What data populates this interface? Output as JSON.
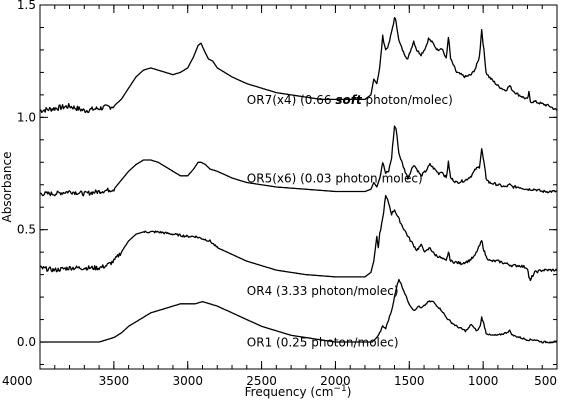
{
  "chart_data": {
    "type": "line",
    "xlabel": "Frequency (cm",
    "xlabel_sup": "−1",
    "xlabel_end": ")",
    "ylabel": "Absorbance",
    "xlim": [
      4000,
      500
    ],
    "ylim": [
      -0.12,
      1.5
    ],
    "grid": false,
    "x_ticks": [
      "4000",
      "3500",
      "3000",
      "2500",
      "2000",
      "1500",
      "1000",
      "500"
    ],
    "y_ticks": [
      "0.0",
      "0.5",
      "1.0",
      "1.5"
    ],
    "series": [
      {
        "label_parts": [
          "OR7(x4) (0.66 ",
          "soft",
          " photon/molec)"
        ],
        "label_pos": [
          2600,
          1.06
        ],
        "noise": [
          [
            4000,
            3500,
            0.012
          ],
          [
            1700,
            500,
            0.006
          ]
        ],
        "points": [
          [
            4000,
            1.03
          ],
          [
            3900,
            1.04
          ],
          [
            3800,
            1.05
          ],
          [
            3700,
            1.03
          ],
          [
            3600,
            1.04
          ],
          [
            3500,
            1.05
          ],
          [
            3450,
            1.08
          ],
          [
            3400,
            1.13
          ],
          [
            3350,
            1.18
          ],
          [
            3300,
            1.21
          ],
          [
            3250,
            1.22
          ],
          [
            3200,
            1.21
          ],
          [
            3150,
            1.2
          ],
          [
            3100,
            1.19
          ],
          [
            3050,
            1.2
          ],
          [
            3000,
            1.22
          ],
          [
            2960,
            1.27
          ],
          [
            2930,
            1.32
          ],
          [
            2910,
            1.33
          ],
          [
            2890,
            1.3
          ],
          [
            2860,
            1.26
          ],
          [
            2830,
            1.25
          ],
          [
            2800,
            1.22
          ],
          [
            2700,
            1.18
          ],
          [
            2600,
            1.15
          ],
          [
            2500,
            1.13
          ],
          [
            2400,
            1.11
          ],
          [
            2300,
            1.1
          ],
          [
            2200,
            1.09
          ],
          [
            2100,
            1.08
          ],
          [
            2000,
            1.08
          ],
          [
            1900,
            1.08
          ],
          [
            1800,
            1.08
          ],
          [
            1760,
            1.1
          ],
          [
            1740,
            1.17
          ],
          [
            1720,
            1.15
          ],
          [
            1700,
            1.22
          ],
          [
            1680,
            1.36
          ],
          [
            1660,
            1.3
          ],
          [
            1640,
            1.32
          ],
          [
            1620,
            1.38
          ],
          [
            1600,
            1.44
          ],
          [
            1590,
            1.43
          ],
          [
            1570,
            1.34
          ],
          [
            1540,
            1.29
          ],
          [
            1510,
            1.26
          ],
          [
            1470,
            1.34
          ],
          [
            1450,
            1.3
          ],
          [
            1420,
            1.28
          ],
          [
            1390,
            1.31
          ],
          [
            1370,
            1.35
          ],
          [
            1340,
            1.33
          ],
          [
            1310,
            1.3
          ],
          [
            1280,
            1.31
          ],
          [
            1250,
            1.26
          ],
          [
            1235,
            1.36
          ],
          [
            1220,
            1.26
          ],
          [
            1180,
            1.2
          ],
          [
            1120,
            1.18
          ],
          [
            1080,
            1.19
          ],
          [
            1050,
            1.22
          ],
          [
            1025,
            1.27
          ],
          [
            1010,
            1.39
          ],
          [
            995,
            1.3
          ],
          [
            980,
            1.2
          ],
          [
            960,
            1.18
          ],
          [
            900,
            1.14
          ],
          [
            850,
            1.12
          ],
          [
            820,
            1.14
          ],
          [
            800,
            1.12
          ],
          [
            760,
            1.1
          ],
          [
            700,
            1.08
          ],
          [
            690,
            1.11
          ],
          [
            680,
            1.07
          ],
          [
            650,
            1.07
          ],
          [
            600,
            1.06
          ],
          [
            550,
            1.05
          ],
          [
            500,
            1.03
          ]
        ]
      },
      {
        "label_parts": [
          "OR5(x6) (0.03 photon/molec)"
        ],
        "label_pos": [
          2600,
          0.71
        ],
        "noise": [
          [
            4000,
            3500,
            0.01
          ],
          [
            1700,
            500,
            0.006
          ]
        ],
        "points": [
          [
            4000,
            0.66
          ],
          [
            3900,
            0.66
          ],
          [
            3800,
            0.67
          ],
          [
            3700,
            0.66
          ],
          [
            3600,
            0.67
          ],
          [
            3500,
            0.68
          ],
          [
            3450,
            0.72
          ],
          [
            3400,
            0.76
          ],
          [
            3350,
            0.79
          ],
          [
            3300,
            0.81
          ],
          [
            3250,
            0.81
          ],
          [
            3200,
            0.8
          ],
          [
            3100,
            0.76
          ],
          [
            3050,
            0.74
          ],
          [
            3000,
            0.74
          ],
          [
            2960,
            0.77
          ],
          [
            2930,
            0.8
          ],
          [
            2910,
            0.8
          ],
          [
            2880,
            0.79
          ],
          [
            2850,
            0.77
          ],
          [
            2800,
            0.76
          ],
          [
            2700,
            0.73
          ],
          [
            2600,
            0.71
          ],
          [
            2500,
            0.7
          ],
          [
            2400,
            0.69
          ],
          [
            2200,
            0.68
          ],
          [
            2000,
            0.67
          ],
          [
            1800,
            0.67
          ],
          [
            1760,
            0.68
          ],
          [
            1740,
            0.71
          ],
          [
            1720,
            0.69
          ],
          [
            1700,
            0.73
          ],
          [
            1680,
            0.8
          ],
          [
            1660,
            0.75
          ],
          [
            1640,
            0.76
          ],
          [
            1620,
            0.82
          ],
          [
            1600,
            0.96
          ],
          [
            1590,
            0.95
          ],
          [
            1570,
            0.84
          ],
          [
            1540,
            0.78
          ],
          [
            1510,
            0.73
          ],
          [
            1470,
            0.79
          ],
          [
            1450,
            0.77
          ],
          [
            1420,
            0.74
          ],
          [
            1390,
            0.76
          ],
          [
            1360,
            0.79
          ],
          [
            1330,
            0.77
          ],
          [
            1300,
            0.75
          ],
          [
            1280,
            0.76
          ],
          [
            1250,
            0.73
          ],
          [
            1235,
            0.8
          ],
          [
            1220,
            0.73
          ],
          [
            1180,
            0.71
          ],
          [
            1120,
            0.72
          ],
          [
            1080,
            0.74
          ],
          [
            1050,
            0.77
          ],
          [
            1025,
            0.78
          ],
          [
            1010,
            0.86
          ],
          [
            995,
            0.8
          ],
          [
            980,
            0.73
          ],
          [
            960,
            0.71
          ],
          [
            900,
            0.7
          ],
          [
            850,
            0.69
          ],
          [
            820,
            0.7
          ],
          [
            800,
            0.69
          ],
          [
            760,
            0.69
          ],
          [
            700,
            0.68
          ],
          [
            650,
            0.68
          ],
          [
            600,
            0.67
          ],
          [
            550,
            0.67
          ],
          [
            500,
            0.67
          ]
        ]
      },
      {
        "label_parts": [
          "OR4 (3.33 photon/molec)"
        ],
        "label_pos": [
          2600,
          0.21
        ],
        "noise": [
          [
            4000,
            3450,
            0.01
          ],
          [
            3300,
            2800,
            0.005
          ],
          [
            1700,
            500,
            0.006
          ]
        ],
        "points": [
          [
            4000,
            0.33
          ],
          [
            3900,
            0.32
          ],
          [
            3800,
            0.33
          ],
          [
            3700,
            0.33
          ],
          [
            3600,
            0.33
          ],
          [
            3550,
            0.34
          ],
          [
            3500,
            0.36
          ],
          [
            3450,
            0.4
          ],
          [
            3400,
            0.45
          ],
          [
            3350,
            0.48
          ],
          [
            3300,
            0.49
          ],
          [
            3200,
            0.49
          ],
          [
            3100,
            0.48
          ],
          [
            3000,
            0.47
          ],
          [
            2950,
            0.47
          ],
          [
            2900,
            0.46
          ],
          [
            2850,
            0.45
          ],
          [
            2800,
            0.42
          ],
          [
            2700,
            0.39
          ],
          [
            2600,
            0.36
          ],
          [
            2500,
            0.34
          ],
          [
            2400,
            0.32
          ],
          [
            2300,
            0.31
          ],
          [
            2200,
            0.3
          ],
          [
            2000,
            0.29
          ],
          [
            1800,
            0.29
          ],
          [
            1760,
            0.31
          ],
          [
            1740,
            0.36
          ],
          [
            1720,
            0.47
          ],
          [
            1710,
            0.42
          ],
          [
            1700,
            0.48
          ],
          [
            1680,
            0.55
          ],
          [
            1660,
            0.65
          ],
          [
            1640,
            0.62
          ],
          [
            1620,
            0.57
          ],
          [
            1600,
            0.59
          ],
          [
            1580,
            0.56
          ],
          [
            1550,
            0.52
          ],
          [
            1500,
            0.46
          ],
          [
            1450,
            0.41
          ],
          [
            1420,
            0.43
          ],
          [
            1390,
            0.4
          ],
          [
            1360,
            0.42
          ],
          [
            1330,
            0.39
          ],
          [
            1300,
            0.38
          ],
          [
            1250,
            0.36
          ],
          [
            1235,
            0.4
          ],
          [
            1220,
            0.36
          ],
          [
            1150,
            0.35
          ],
          [
            1100,
            0.36
          ],
          [
            1060,
            0.38
          ],
          [
            1030,
            0.42
          ],
          [
            1010,
            0.45
          ],
          [
            995,
            0.41
          ],
          [
            980,
            0.38
          ],
          [
            950,
            0.36
          ],
          [
            900,
            0.36
          ],
          [
            850,
            0.35
          ],
          [
            800,
            0.34
          ],
          [
            750,
            0.34
          ],
          [
            700,
            0.33
          ],
          [
            690,
            0.29
          ],
          [
            680,
            0.27
          ],
          [
            670,
            0.29
          ],
          [
            650,
            0.31
          ],
          [
            600,
            0.32
          ],
          [
            550,
            0.32
          ],
          [
            500,
            0.32
          ]
        ]
      },
      {
        "label_parts": [
          "OR1 (0.25 photon/molec)"
        ],
        "label_pos": [
          2600,
          -0.02
        ],
        "noise": [
          [
            1700,
            500,
            0.004
          ]
        ],
        "points": [
          [
            4000,
            0.0
          ],
          [
            3800,
            0.0
          ],
          [
            3700,
            0.0
          ],
          [
            3600,
            0.0
          ],
          [
            3550,
            0.01
          ],
          [
            3500,
            0.02
          ],
          [
            3450,
            0.04
          ],
          [
            3400,
            0.07
          ],
          [
            3350,
            0.09
          ],
          [
            3300,
            0.11
          ],
          [
            3250,
            0.13
          ],
          [
            3200,
            0.14
          ],
          [
            3150,
            0.15
          ],
          [
            3100,
            0.16
          ],
          [
            3050,
            0.17
          ],
          [
            3000,
            0.17
          ],
          [
            2950,
            0.17
          ],
          [
            2900,
            0.18
          ],
          [
            2850,
            0.17
          ],
          [
            2800,
            0.16
          ],
          [
            2700,
            0.13
          ],
          [
            2600,
            0.1
          ],
          [
            2500,
            0.07
          ],
          [
            2400,
            0.05
          ],
          [
            2300,
            0.03
          ],
          [
            2200,
            0.02
          ],
          [
            2100,
            0.01
          ],
          [
            2000,
            0.0
          ],
          [
            1850,
            0.0
          ],
          [
            1750,
            0.0
          ],
          [
            1720,
            0.02
          ],
          [
            1700,
            0.04
          ],
          [
            1680,
            0.07
          ],
          [
            1660,
            0.06
          ],
          [
            1640,
            0.1
          ],
          [
            1620,
            0.14
          ],
          [
            1600,
            0.2
          ],
          [
            1580,
            0.26
          ],
          [
            1570,
            0.28
          ],
          [
            1550,
            0.25
          ],
          [
            1520,
            0.2
          ],
          [
            1500,
            0.17
          ],
          [
            1480,
            0.15
          ],
          [
            1460,
            0.14
          ],
          [
            1440,
            0.16
          ],
          [
            1420,
            0.15
          ],
          [
            1400,
            0.16
          ],
          [
            1370,
            0.18
          ],
          [
            1340,
            0.18
          ],
          [
            1310,
            0.16
          ],
          [
            1280,
            0.14
          ],
          [
            1250,
            0.11
          ],
          [
            1220,
            0.09
          ],
          [
            1180,
            0.07
          ],
          [
            1150,
            0.06
          ],
          [
            1120,
            0.05
          ],
          [
            1100,
            0.06
          ],
          [
            1080,
            0.08
          ],
          [
            1060,
            0.06
          ],
          [
            1040,
            0.05
          ],
          [
            1020,
            0.07
          ],
          [
            1010,
            0.11
          ],
          [
            995,
            0.08
          ],
          [
            980,
            0.04
          ],
          [
            950,
            0.03
          ],
          [
            900,
            0.03
          ],
          [
            850,
            0.04
          ],
          [
            820,
            0.05
          ],
          [
            800,
            0.03
          ],
          [
            750,
            0.02
          ],
          [
            700,
            0.01
          ],
          [
            650,
            0.01
          ],
          [
            600,
            0.0
          ],
          [
            550,
            0.0
          ],
          [
            500,
            0.0
          ]
        ]
      }
    ]
  }
}
